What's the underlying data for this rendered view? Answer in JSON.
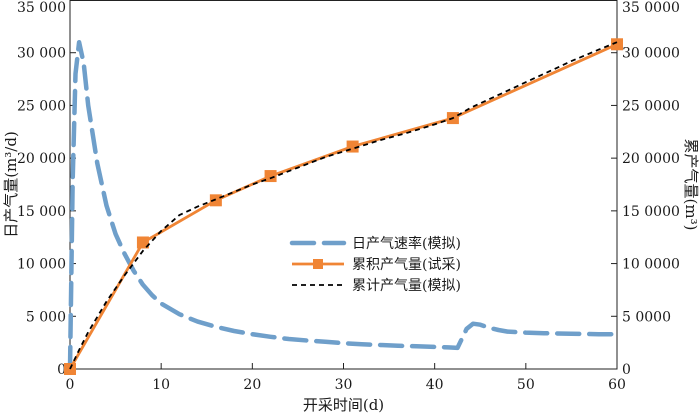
{
  "chart_data": {
    "type": "line",
    "xlabel": "开采时间(d)",
    "ylabel_left": "日产气量(m³/d)",
    "ylabel_right": "累产气量(m³)",
    "xlim": [
      0,
      60
    ],
    "ylim_left": [
      0,
      35000
    ],
    "ylim_right": [
      0,
      350000
    ],
    "grid": false,
    "legend_position": "center-right",
    "x_ticks": [
      0,
      10,
      20,
      30,
      40,
      50,
      60
    ],
    "x_tick_labels": [
      "0",
      "10",
      "20",
      "30",
      "40",
      "50",
      "60"
    ],
    "y_left_ticks": [
      0,
      5000,
      10000,
      15000,
      20000,
      25000,
      30000,
      35000
    ],
    "y_left_tick_labels": [
      "0",
      "5 000",
      "10 000",
      "15 000",
      "20 000",
      "25 000",
      "30 000",
      "35 000"
    ],
    "y_right_ticks": [
      0,
      50000,
      100000,
      150000,
      200000,
      250000,
      300000,
      350000
    ],
    "y_right_tick_labels": [
      "0",
      "5 0000",
      "10 0000",
      "15 0000",
      "20 0000",
      "25 0000",
      "30 0000",
      "35 0000"
    ],
    "series": [
      {
        "name": "日产气速率(模拟)",
        "axis": "left",
        "color": "#6f9fca",
        "style": "dashed-thick",
        "x": [
          0,
          0.3,
          0.6,
          1.0,
          1.5,
          2,
          3,
          4,
          5,
          6,
          7,
          8,
          9,
          10,
          12,
          14,
          16,
          18,
          20,
          22,
          24,
          26,
          28,
          30,
          32,
          34,
          36,
          38,
          40,
          41.5,
          42.5,
          43.5,
          44.2,
          45,
          46,
          47,
          48,
          50,
          52,
          55,
          58,
          60
        ],
        "values": [
          0,
          18000,
          28000,
          31000,
          29000,
          25000,
          19500,
          15500,
          12800,
          10900,
          9300,
          8000,
          7000,
          6200,
          5200,
          4500,
          4000,
          3600,
          3300,
          3050,
          2850,
          2700,
          2580,
          2450,
          2350,
          2280,
          2200,
          2150,
          2100,
          2050,
          2000,
          3800,
          4300,
          4200,
          3900,
          3700,
          3550,
          3450,
          3400,
          3350,
          3300,
          3300
        ]
      },
      {
        "name": "累积产气量(试采)",
        "axis": "right",
        "color": "#f08535",
        "style": "solid-square",
        "x": [
          0,
          8,
          16,
          22,
          31,
          42,
          60
        ],
        "values": [
          0,
          120000,
          160000,
          183000,
          211000,
          238000,
          308000
        ]
      },
      {
        "name": "累计产气量(模拟)",
        "axis": "right",
        "color": "#000000",
        "style": "dashed-thin",
        "x": [
          0,
          1,
          2,
          4,
          6,
          8,
          10,
          12,
          14,
          16,
          18,
          20,
          22,
          25,
          28,
          31,
          34,
          37,
          40,
          42,
          44,
          46,
          48,
          50,
          52,
          55,
          58,
          60
        ],
        "values": [
          0,
          18000,
          35000,
          64000,
          89000,
          112000,
          131000,
          146000,
          154000,
          161000,
          168000,
          175000,
          181000,
          191000,
          201000,
          209000,
          217000,
          224000,
          232000,
          238000,
          248000,
          256000,
          264000,
          272000,
          280000,
          292000,
          303000,
          310000
        ]
      }
    ]
  }
}
